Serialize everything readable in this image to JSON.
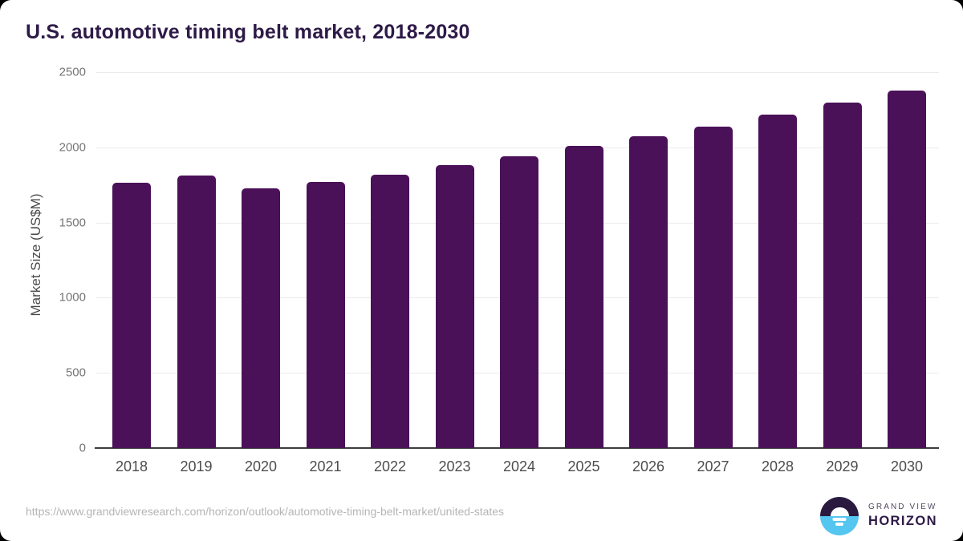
{
  "title": "U.S. automotive timing belt market, 2018-2030",
  "source_url": "https://www.grandviewresearch.com/horizon/outlook/automotive-timing-belt-market/united-states",
  "logo": {
    "line1": "GRAND VIEW",
    "line2": "HORIZON"
  },
  "colors": {
    "bar": "#4a1158",
    "title": "#2e1a47",
    "logo_text": "#2e1a47",
    "logo_circle_top": "#2a1a40",
    "logo_circle_bottom": "#55c6f0"
  },
  "chart_data": {
    "type": "bar",
    "categories": [
      "2018",
      "2019",
      "2020",
      "2021",
      "2022",
      "2023",
      "2024",
      "2025",
      "2026",
      "2027",
      "2028",
      "2029",
      "2030"
    ],
    "values": [
      1765,
      1815,
      1725,
      1770,
      1820,
      1880,
      1940,
      2010,
      2075,
      2140,
      2220,
      2295,
      2380
    ],
    "title": "U.S. automotive timing belt market, 2018-2030",
    "xlabel": "",
    "ylabel": "Market Size (US$M)",
    "ylim": [
      0,
      2500
    ],
    "yticks": [
      0,
      500,
      1000,
      1500,
      2000,
      2500
    ],
    "grid": true,
    "legend": false
  }
}
